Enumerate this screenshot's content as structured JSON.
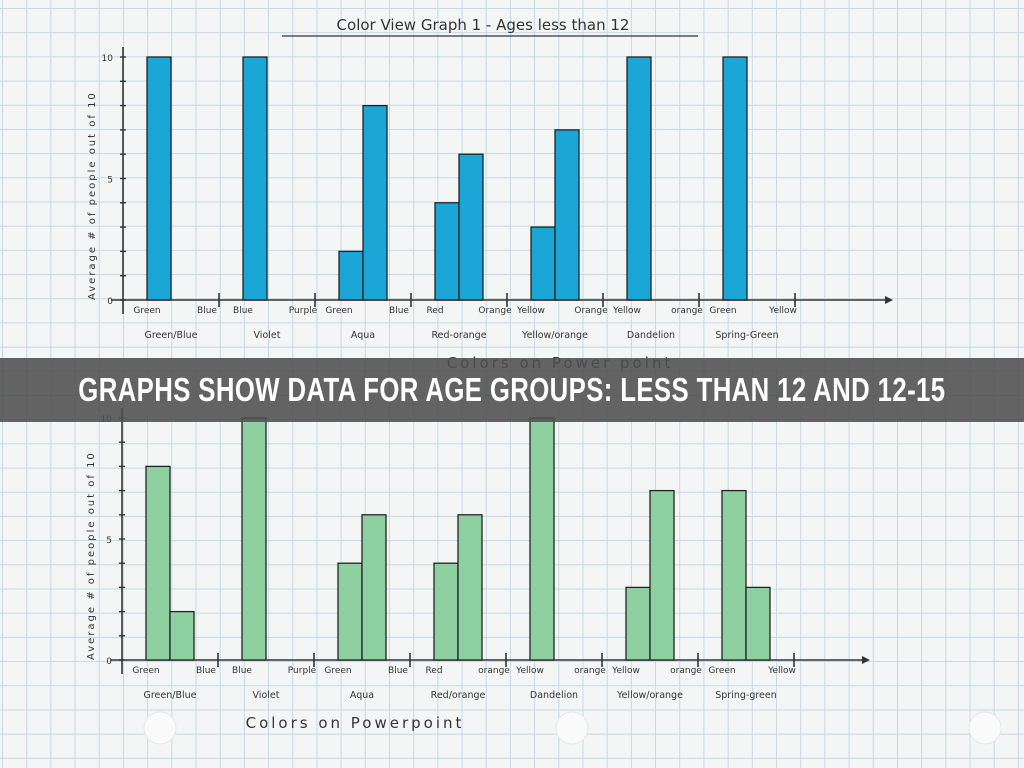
{
  "banner": {
    "text": "GRAPHS SHOW DATA FOR AGE GROUPS: LESS THAN 12 AND 12-15"
  },
  "chart_data": [
    {
      "type": "bar",
      "title": "Color View Graph 1 - Ages less than 12",
      "xlabel": "Colors on Power point",
      "ylabel": "Average # of people out of 10",
      "ylim": [
        0,
        10
      ],
      "yticks": [
        "0",
        "5",
        "10"
      ],
      "color": "#1aa6d6",
      "groups": [
        {
          "name": "Green/Blue",
          "bars": [
            {
              "label": "Green",
              "value": 10
            },
            {
              "label": "Blue",
              "value": 0
            }
          ]
        },
        {
          "name": "Violet",
          "bars": [
            {
              "label": "Blue",
              "value": 10
            },
            {
              "label": "Purple",
              "value": 0
            }
          ]
        },
        {
          "name": "Aqua",
          "bars": [
            {
              "label": "Green",
              "value": 2
            },
            {
              "label": "Blue",
              "value": 8
            }
          ]
        },
        {
          "name": "Red-orange",
          "bars": [
            {
              "label": "Red",
              "value": 4
            },
            {
              "label": "Orange",
              "value": 6
            }
          ]
        },
        {
          "name": "Yellow/orange",
          "bars": [
            {
              "label": "Yellow",
              "value": 3
            },
            {
              "label": "Orange",
              "value": 7
            }
          ]
        },
        {
          "name": "Dandelion",
          "bars": [
            {
              "label": "Yellow",
              "value": 10
            },
            {
              "label": "orange",
              "value": 0
            }
          ]
        },
        {
          "name": "Spring-Green",
          "bars": [
            {
              "label": "Green",
              "value": 10
            },
            {
              "label": "Yellow",
              "value": 0
            }
          ]
        }
      ]
    },
    {
      "type": "bar",
      "title": "",
      "xlabel": "Colors on Powerpoint",
      "ylabel": "Average # of people out of 10",
      "ylim": [
        0,
        10
      ],
      "yticks": [
        "0",
        "5",
        "10"
      ],
      "color": "#8fd0a0",
      "groups": [
        {
          "name": "Green/Blue",
          "bars": [
            {
              "label": "Green",
              "value": 8
            },
            {
              "label": "Blue",
              "value": 2
            }
          ]
        },
        {
          "name": "Violet",
          "bars": [
            {
              "label": "Blue",
              "value": 10
            },
            {
              "label": "Purple",
              "value": 0
            }
          ]
        },
        {
          "name": "Aqua",
          "bars": [
            {
              "label": "Green",
              "value": 4
            },
            {
              "label": "Blue",
              "value": 6
            }
          ]
        },
        {
          "name": "Red/orange",
          "bars": [
            {
              "label": "Red",
              "value": 4
            },
            {
              "label": "orange",
              "value": 6
            }
          ]
        },
        {
          "name": "Dandelion",
          "bars": [
            {
              "label": "Yellow",
              "value": 10
            },
            {
              "label": "orange",
              "value": 0
            }
          ]
        },
        {
          "name": "Yellow/orange",
          "bars": [
            {
              "label": "Yellow",
              "value": 3
            },
            {
              "label": "orange",
              "value": 7
            }
          ]
        },
        {
          "name": "Spring-green",
          "bars": [
            {
              "label": "Green",
              "value": 7
            },
            {
              "label": "Yellow",
              "value": 3
            }
          ]
        }
      ]
    }
  ]
}
